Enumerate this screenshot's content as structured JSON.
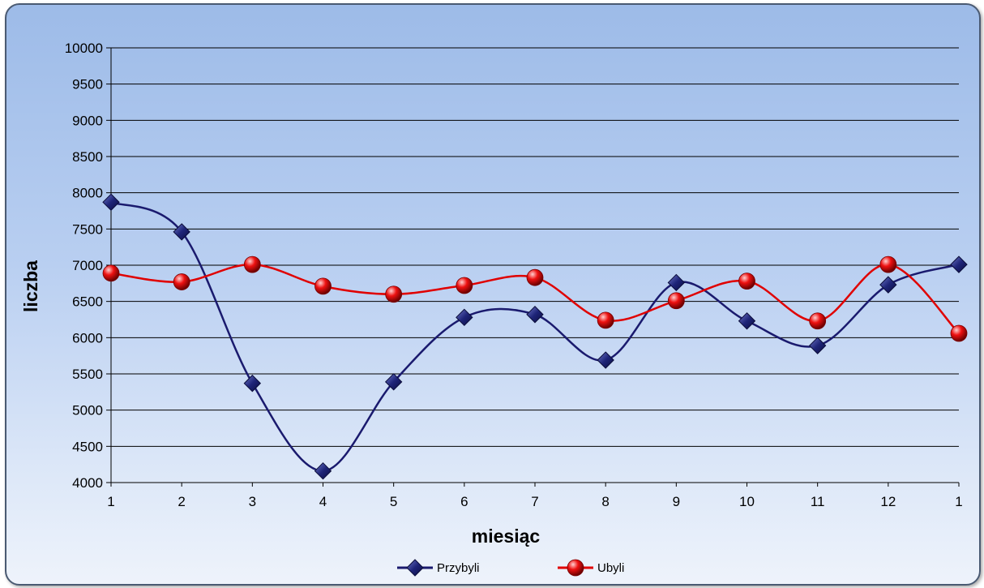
{
  "chart_data": {
    "type": "line",
    "categories": [
      "1",
      "2",
      "3",
      "4",
      "5",
      "6",
      "7",
      "8",
      "9",
      "10",
      "11",
      "12",
      "1"
    ],
    "series": [
      {
        "name": "Przybyli",
        "color": "#1a1a6e",
        "marker": "diamond",
        "values": [
          7870,
          7460,
          5370,
          4160,
          5390,
          6280,
          6320,
          5690,
          6760,
          6230,
          5890,
          6730,
          7010
        ]
      },
      {
        "name": "Ubyli",
        "color": "#e00000",
        "marker": "circle",
        "values": [
          6890,
          6770,
          7010,
          6710,
          6600,
          6720,
          6830,
          6240,
          6510,
          6780,
          6230,
          7010,
          6060
        ]
      }
    ],
    "xlabel": "miesiąc",
    "ylabel": "liczba",
    "ylim": [
      4000,
      10000
    ],
    "yticks": [
      "4000",
      "4500",
      "5000",
      "5500",
      "6000",
      "6500",
      "7000",
      "7500",
      "8000",
      "8500",
      "9000",
      "9500",
      "10000"
    ],
    "grid": true,
    "smooth": true,
    "legend": "bottom"
  }
}
